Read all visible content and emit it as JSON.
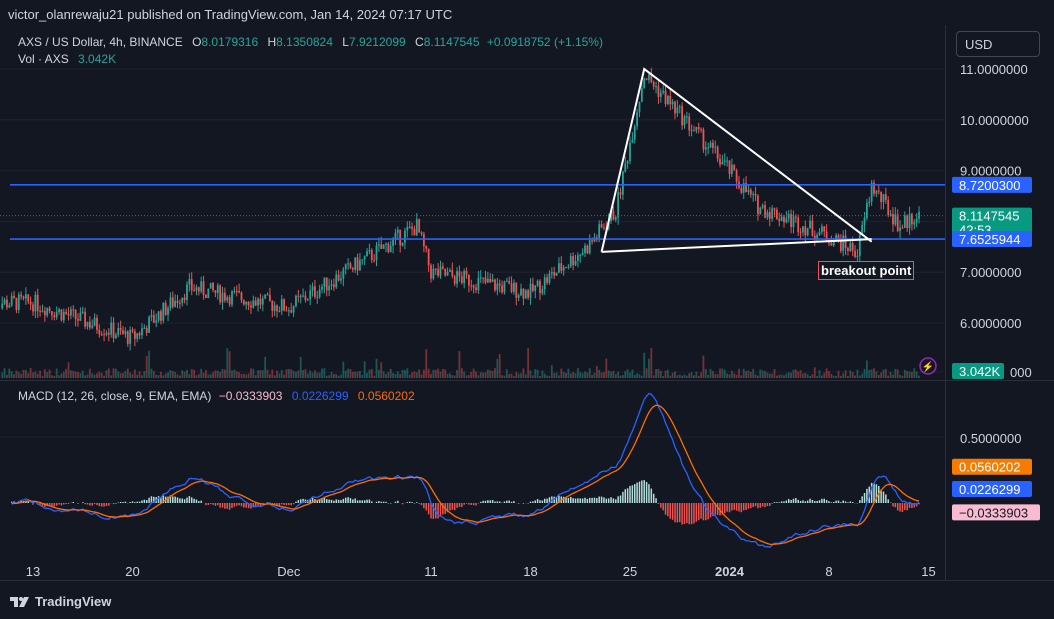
{
  "header": {
    "published_line": "victor_olanrewaju21 published on TradingView.com, Jan 14, 2024 07:17 UTC",
    "symbol_text": "AXS / US Dollar, 4h, BINANCE",
    "o_label": "O",
    "o_value": "8.0179316",
    "h_label": "H",
    "h_value": "8.1350824",
    "l_label": "L",
    "l_value": "7.9212099",
    "c_label": "C",
    "c_value": "8.1147545",
    "change": "+0.0918752 (+1.15%)",
    "vol_label": "Vol · AXS",
    "vol_value": "3.042K"
  },
  "currency_button": "USD",
  "macd_legend": {
    "label": "MACD (12, 26, close, 9, EMA, EMA)",
    "hist_value": "−0.0333903",
    "macd_value": "0.0226299",
    "signal_value": "0.0560202"
  },
  "price_scale": {
    "ticks": [
      "11.0000000",
      "10.0000000",
      "9.0000000",
      "7.0000000",
      "6.0000000"
    ],
    "volume_tick_partial": "000",
    "resistance_label": "8.7200300",
    "last_price_label": "8.1147545",
    "countdown": "42:53",
    "support_label": "7.6525944",
    "volume_label": "3.042K"
  },
  "macd_scale": {
    "tick": "0.5000000",
    "signal_label": "0.0560202",
    "macd_label": "0.0226299",
    "hist_label": "−0.0333903"
  },
  "x_axis": [
    "13",
    "20",
    "Dec",
    "11",
    "18",
    "25",
    "2024",
    "8",
    "15"
  ],
  "annotation": "breakout point",
  "brand": "TradingView",
  "colors": {
    "background": "#131722",
    "up": "#26a69a",
    "down": "#ef5350",
    "level_line": "#2962ff",
    "macd_line": "#2962ff",
    "signal_line": "#ff6d00",
    "hist_pos": "#b2dfdb",
    "hist_neg": "#ef5350",
    "last_price_badge": "#089981",
    "signal_badge": "#f57c00",
    "hist_badge": "#f8bbd0"
  },
  "chart_data": {
    "type": "candlestick",
    "timeframe": "4h",
    "ylim": [
      5.0,
      11.6
    ],
    "horizontal_levels": [
      8.72003,
      7.6525944
    ],
    "last_close": 8.1147545,
    "key_closes": [
      {
        "date": "2023-11-13",
        "close": 6.4
      },
      {
        "date": "2023-11-20",
        "close": 5.7
      },
      {
        "date": "2023-11-24",
        "close": 6.7
      },
      {
        "date": "2023-12-01",
        "close": 6.3
      },
      {
        "date": "2023-12-10",
        "close": 7.9
      },
      {
        "date": "2023-12-11",
        "close": 7.0
      },
      {
        "date": "2023-12-18",
        "close": 6.6
      },
      {
        "date": "2023-12-22",
        "close": 7.5
      },
      {
        "date": "2023-12-24",
        "close": 8.2
      },
      {
        "date": "2023-12-26",
        "close": 10.9
      },
      {
        "date": "2024-01-01",
        "close": 9.0
      },
      {
        "date": "2024-01-03",
        "close": 8.3
      },
      {
        "date": "2024-01-08",
        "close": 7.7
      },
      {
        "date": "2024-01-10",
        "close": 7.4
      },
      {
        "date": "2024-01-11",
        "close": 8.7
      },
      {
        "date": "2024-01-13",
        "close": 7.9
      },
      {
        "date": "2024-01-14",
        "close": 8.11
      }
    ],
    "macd": {
      "fast": 12,
      "slow": 26,
      "signal": 9,
      "last_macd": 0.0226299,
      "last_signal": 0.0560202,
      "last_hist": -0.0333903,
      "peak_macd": 0.75,
      "trough_macd": -0.28
    }
  }
}
